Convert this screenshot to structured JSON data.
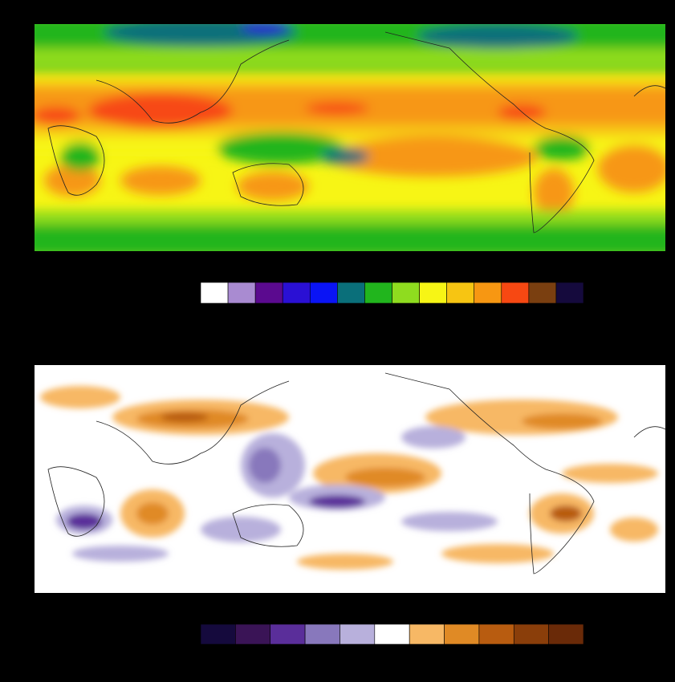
{
  "panels": [
    {
      "colorbar": [
        "#ffffff",
        "#a98bd1",
        "#5b0a8f",
        "#2a10d4",
        "#0a14f5",
        "#0a6f7a",
        "#21b51d",
        "#8fdc1f",
        "#f7f515",
        "#f7c512",
        "#f79712",
        "#f74812",
        "#7a3f10",
        "#150a3d"
      ]
    },
    {
      "colorbar": [
        "#150a3d",
        "#3a1456",
        "#5a2e9a",
        "#8878bc",
        "#b8b0dc",
        "#ffffff",
        "#f7b865",
        "#e08a25",
        "#b85c10",
        "#8a3e0a",
        "#6a2a08"
      ]
    }
  ]
}
